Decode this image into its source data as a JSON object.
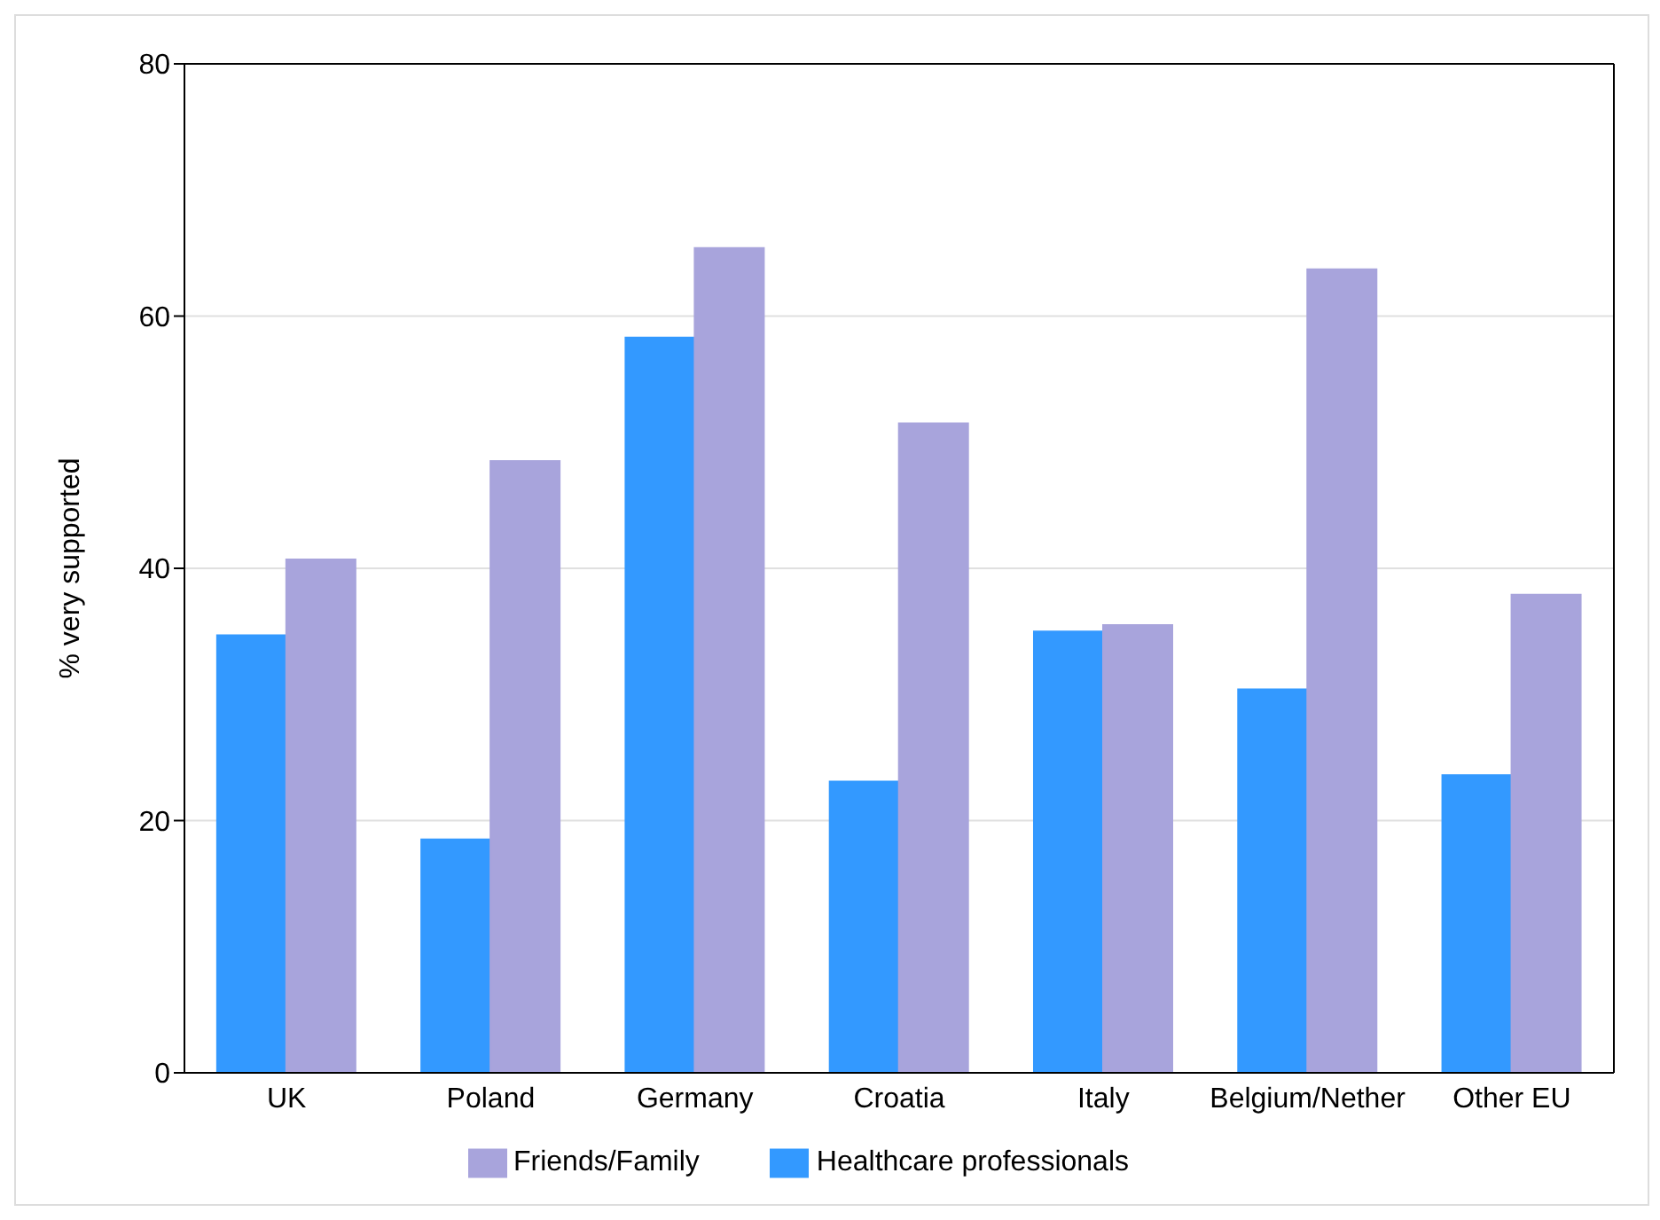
{
  "chart_data": {
    "type": "bar",
    "ylabel": "% very supported",
    "categories": [
      "UK",
      "Poland",
      "Germany",
      "Croatia",
      "Italy",
      "Belgium/Nether",
      "Other EU"
    ],
    "series": [
      {
        "name": "Healthcare professionals",
        "color": "#3399ff",
        "values": [
          34.7,
          18.5,
          58.3,
          23.1,
          35.0,
          30.4,
          23.6
        ]
      },
      {
        "name": "Friends/Family",
        "color": "#a8a4dc",
        "values": [
          40.7,
          48.5,
          65.4,
          51.5,
          35.5,
          63.7,
          37.9
        ]
      }
    ],
    "ylim": [
      0,
      80
    ],
    "yticks": [
      0,
      20,
      40,
      60,
      80
    ],
    "grid": "y",
    "legend": "bottom"
  }
}
